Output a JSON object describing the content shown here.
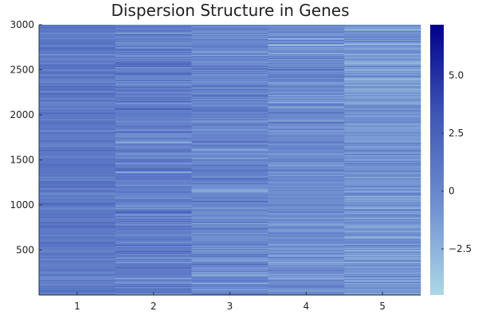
{
  "chart_data": {
    "type": "heatmap",
    "title": "Dispersion Structure in Genes",
    "xlabel": "",
    "ylabel": "",
    "x_categories": [
      "1",
      "2",
      "3",
      "4",
      "5"
    ],
    "y_range": [
      0,
      3000
    ],
    "y_ticks": [
      500,
      1000,
      1500,
      2000,
      2500,
      3000
    ],
    "n_rows": 3000,
    "value_range": [
      -4.5,
      7.2
    ],
    "colorbar_ticks": [
      -2.5,
      0,
      2.5,
      5.0
    ],
    "colorbar_tick_labels": [
      "−2.5",
      "0",
      "2.5",
      "5.0"
    ],
    "colormap": [
      "#add8e6",
      "#6f8fd0",
      "#3f57b5",
      "#00008b"
    ],
    "column_mean_values": [
      0.9,
      0.5,
      0.0,
      -0.4,
      -1.0
    ],
    "column_spread": [
      0.7,
      1.0,
      1.0,
      1.0,
      1.0
    ],
    "grid": false
  }
}
